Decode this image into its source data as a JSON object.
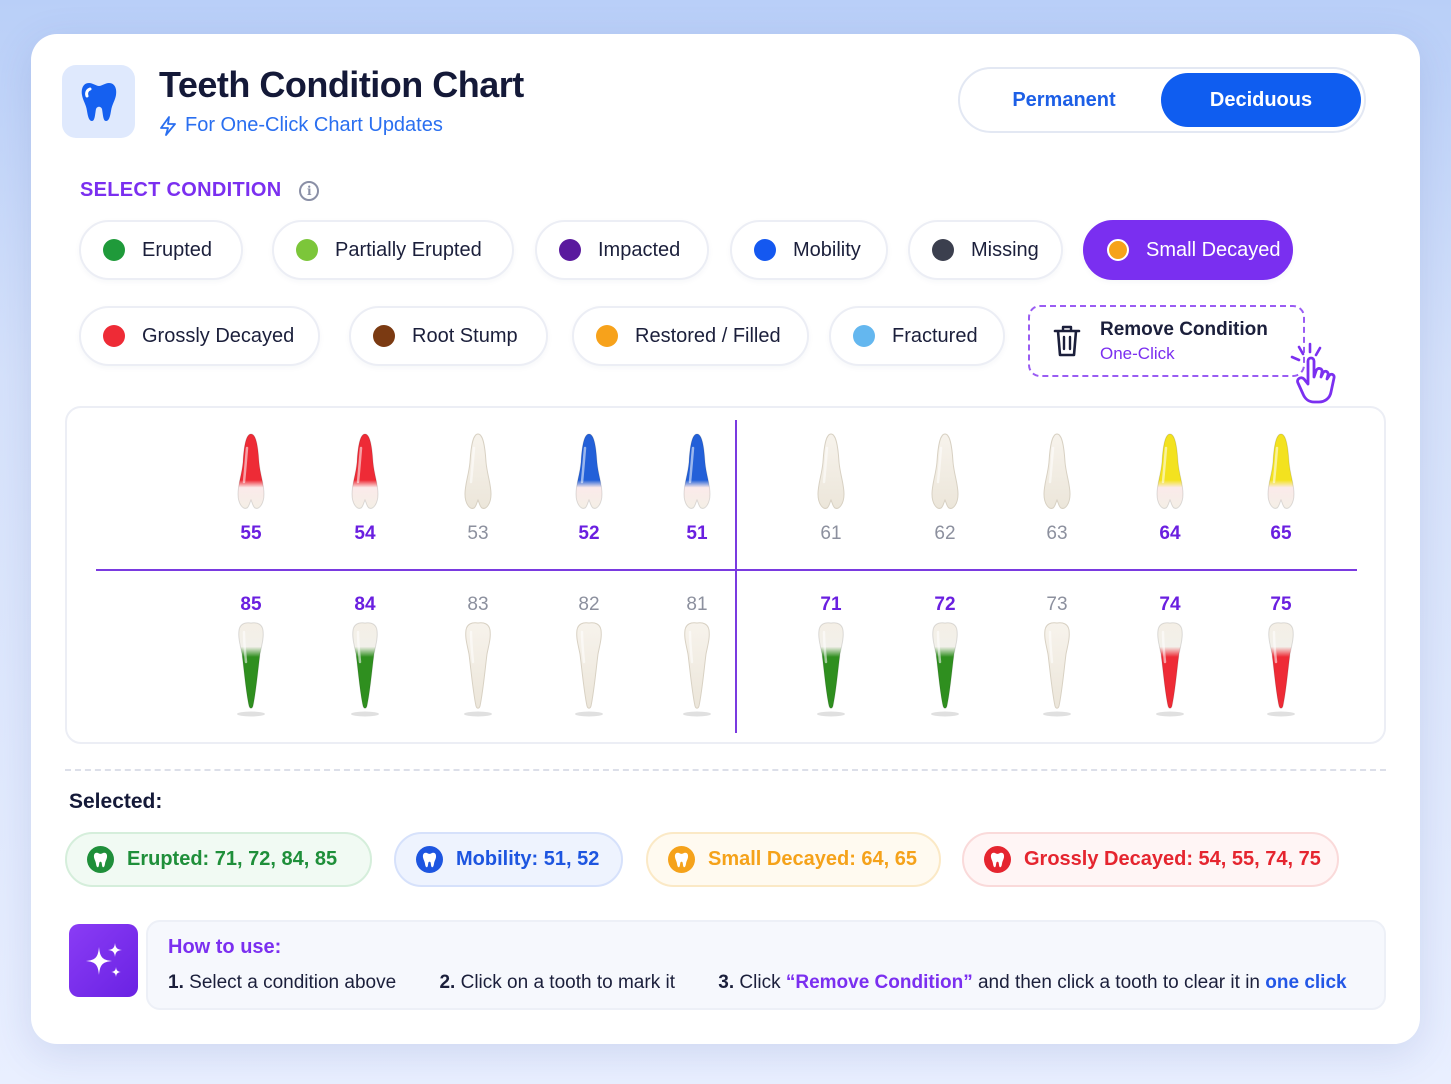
{
  "header": {
    "title": "Teeth Condition Chart",
    "subtitle": "For One-Click Chart Updates",
    "toggle": {
      "permanent": "Permanent",
      "deciduous": "Deciduous",
      "active": "Deciduous"
    }
  },
  "conditions_section": {
    "title": "SELECT CONDITION",
    "active": "Small Decayed",
    "items": [
      {
        "label": "Erupted",
        "color": "#1f9a3a"
      },
      {
        "label": "Partially Erupted",
        "color": "#7cc63a"
      },
      {
        "label": "Impacted",
        "color": "#5a1a9e"
      },
      {
        "label": "Mobility",
        "color": "#1458f0"
      },
      {
        "label": "Missing",
        "color": "#3b3f4e"
      },
      {
        "label": "Small Decayed",
        "color": "#f6a21a"
      },
      {
        "label": "Grossly Decayed",
        "color": "#ee2b36"
      },
      {
        "label": "Root Stump",
        "color": "#7b3a12"
      },
      {
        "label": "Restored / Filled",
        "color": "#f7a21b"
      },
      {
        "label": "Fractured",
        "color": "#64b7ef"
      }
    ],
    "remove": {
      "label": "Remove Condition",
      "sublabel": "One-Click"
    }
  },
  "chart": {
    "upper": [
      {
        "num": "55",
        "condition": "grossly_decayed"
      },
      {
        "num": "54",
        "condition": "grossly_decayed"
      },
      {
        "num": "53",
        "condition": "none"
      },
      {
        "num": "52",
        "condition": "mobility"
      },
      {
        "num": "51",
        "condition": "mobility"
      },
      {
        "num": "61",
        "condition": "none"
      },
      {
        "num": "62",
        "condition": "none"
      },
      {
        "num": "63",
        "condition": "none"
      },
      {
        "num": "64",
        "condition": "small_decayed"
      },
      {
        "num": "65",
        "condition": "small_decayed"
      }
    ],
    "lower": [
      {
        "num": "85",
        "condition": "erupted"
      },
      {
        "num": "84",
        "condition": "erupted"
      },
      {
        "num": "83",
        "condition": "none"
      },
      {
        "num": "82",
        "condition": "none"
      },
      {
        "num": "81",
        "condition": "none"
      },
      {
        "num": "71",
        "condition": "erupted"
      },
      {
        "num": "72",
        "condition": "erupted"
      },
      {
        "num": "73",
        "condition": "none"
      },
      {
        "num": "74",
        "condition": "grossly_decayed"
      },
      {
        "num": "75",
        "condition": "grossly_decayed"
      }
    ],
    "condition_colors": {
      "erupted": "#2f8f1f",
      "mobility": "#2360d8",
      "small_decayed": "#f3e21f",
      "grossly_decayed": "#ee2b36",
      "none": "#f3eee4"
    }
  },
  "selected": {
    "label": "Selected:",
    "chips": [
      {
        "text": "Erupted: 71, 72, 84, 85",
        "color": "#1f8f3a",
        "bg": "#f1faf3",
        "border": "#d5eedb"
      },
      {
        "text": "Mobility: 51, 52",
        "color": "#1d55e0",
        "bg": "#eef3fe",
        "border": "#d6e1fb"
      },
      {
        "text": "Small Decayed: 64, 65",
        "color": "#f5a21a",
        "bg": "#fffaf0",
        "border": "#fbe9c6"
      },
      {
        "text": "Grossly Decayed: 54, 55, 74, 75",
        "color": "#e5252f",
        "bg": "#fff5f5",
        "border": "#fadada"
      }
    ]
  },
  "how_to": {
    "title": "How to use:",
    "step1_num": "1.",
    "step1_text": "Select a condition above",
    "step2_num": "2.",
    "step2_text": "Click on a tooth to mark it",
    "step3_num": "3.",
    "step3_a": "Click",
    "step3_b": "“Remove Condition”",
    "step3_c": "and then click a tooth to clear it in",
    "step3_d": "one click"
  }
}
